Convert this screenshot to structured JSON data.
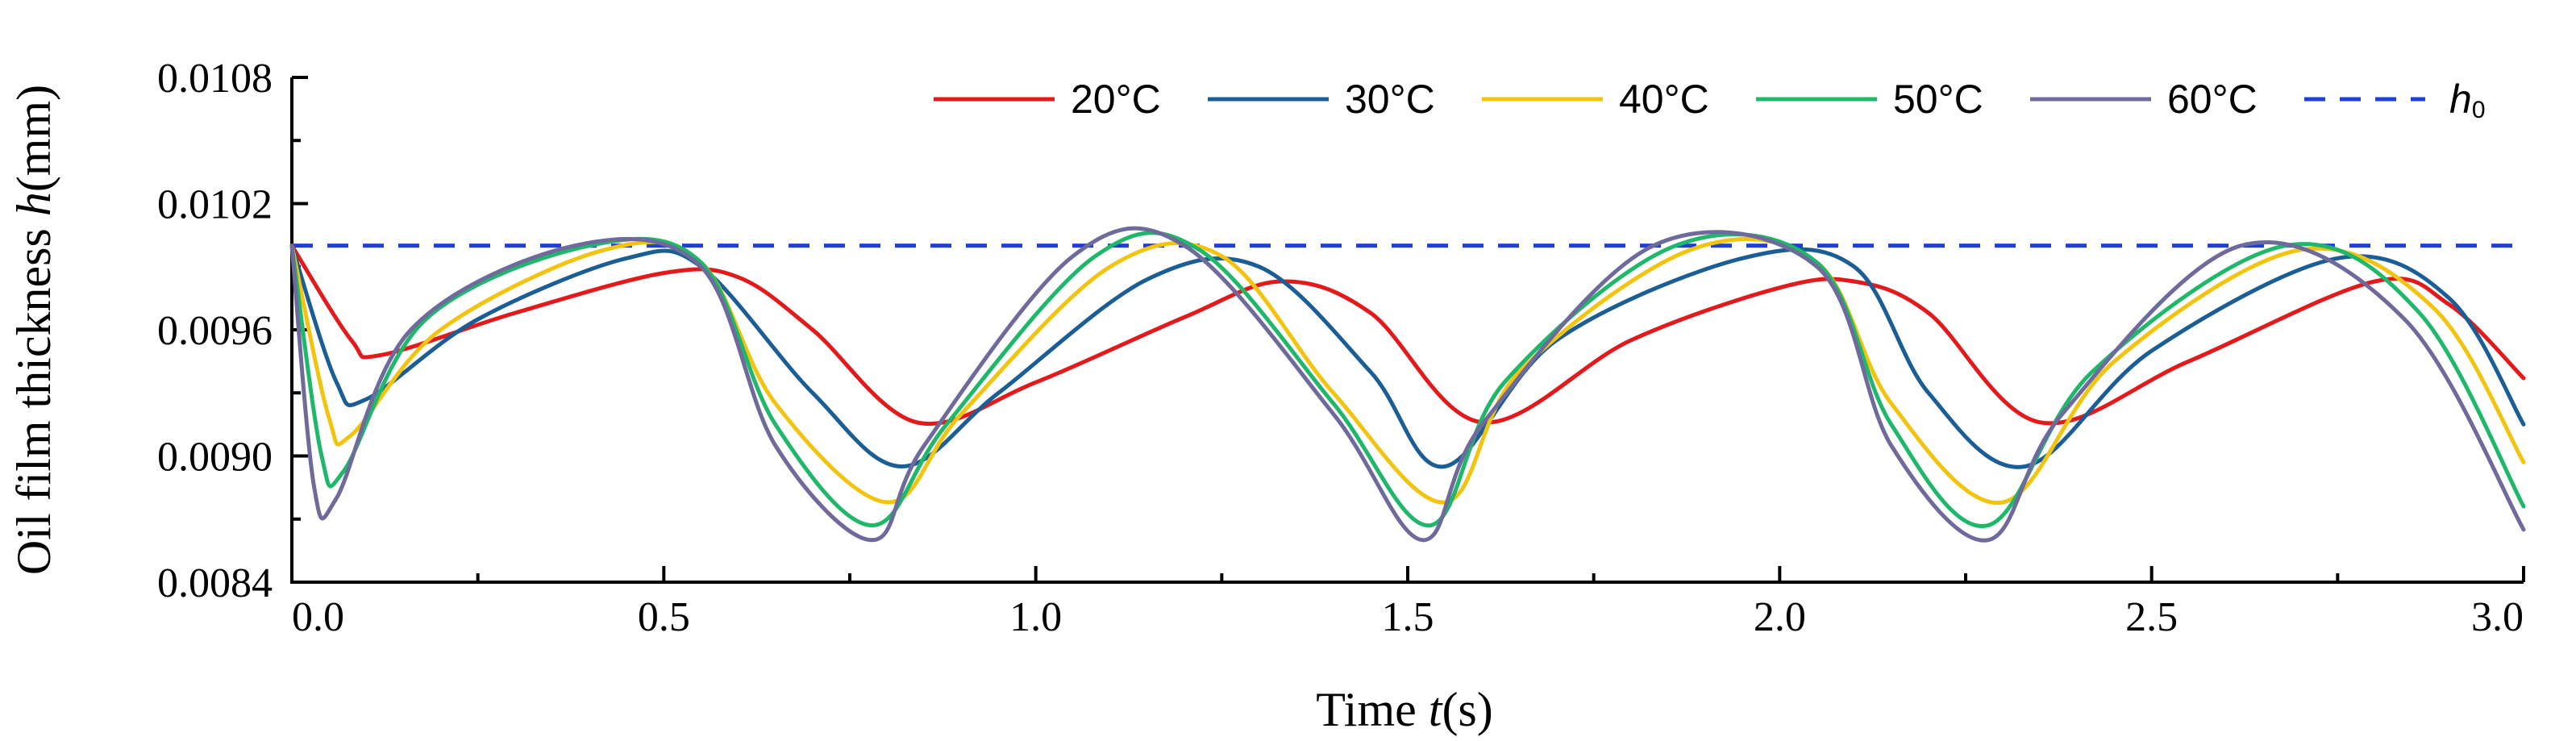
{
  "chart_data": {
    "type": "line",
    "xlabel": {
      "prefix": "Time ",
      "var": "t",
      "suffix": "(s)"
    },
    "ylabel": {
      "prefix": "Oil film thickness ",
      "var": "h",
      "suffix": "(mm)"
    },
    "xlim": [
      0,
      3.0
    ],
    "ylim": [
      0.0084,
      0.0108
    ],
    "xticks": [
      0,
      0.5,
      1.0,
      1.5,
      2.0,
      2.5,
      3.0
    ],
    "xtick_labels": [
      "0.0",
      "0.5",
      "1.0",
      "1.5",
      "2.0",
      "2.5",
      "3.0"
    ],
    "yticks": [
      0.0084,
      0.009,
      0.0096,
      0.0102,
      0.0108
    ],
    "ytick_labels": [
      "0.0084",
      "0.0090",
      "0.0096",
      "0.0102",
      "0.0108"
    ],
    "legend_position": "top-right",
    "reference": {
      "name": "h₀",
      "label_var": "h",
      "label_sub": "0",
      "value": 0.01,
      "color": "#1f3fd6",
      "style": "dashed"
    },
    "series": [
      {
        "name": "20°C",
        "color": "#e31a1c",
        "x": [
          0.0,
          0.08,
          0.12,
          0.3,
          0.5,
          0.6,
          0.7,
          0.84,
          1.0,
          1.2,
          1.33,
          1.45,
          1.6,
          1.8,
          2.0,
          2.1,
          2.2,
          2.35,
          2.55,
          2.8,
          2.9,
          3.0
        ],
        "y": [
          0.01,
          0.00955,
          0.00948,
          0.00968,
          0.00987,
          0.00985,
          0.0096,
          0.00916,
          0.00935,
          0.00966,
          0.00983,
          0.00968,
          0.00916,
          0.00955,
          0.0098,
          0.00983,
          0.00968,
          0.00916,
          0.00945,
          0.00983,
          0.00972,
          0.00937
        ]
      },
      {
        "name": "30°C",
        "color": "#1b5e96",
        "x": [
          0.0,
          0.06,
          0.1,
          0.25,
          0.45,
          0.55,
          0.7,
          0.82,
          0.95,
          1.15,
          1.3,
          1.45,
          1.55,
          1.7,
          1.95,
          2.1,
          2.2,
          2.33,
          2.5,
          2.75,
          2.9,
          3.0
        ],
        "y": [
          0.01,
          0.00935,
          0.00927,
          0.00965,
          0.00994,
          0.0099,
          0.0093,
          0.00895,
          0.0093,
          0.00984,
          0.0099,
          0.0094,
          0.00895,
          0.00955,
          0.00994,
          0.0099,
          0.0093,
          0.00895,
          0.0095,
          0.00994,
          0.00975,
          0.00915
        ]
      },
      {
        "name": "40°C",
        "color": "#f2c40f",
        "x": [
          0.0,
          0.05,
          0.08,
          0.2,
          0.42,
          0.55,
          0.65,
          0.8,
          0.9,
          1.1,
          1.25,
          1.4,
          1.55,
          1.65,
          1.88,
          2.05,
          2.15,
          2.3,
          2.45,
          2.7,
          2.88,
          3.0
        ],
        "y": [
          0.01,
          0.00918,
          0.0091,
          0.0096,
          0.00998,
          0.00992,
          0.00925,
          0.00878,
          0.0092,
          0.0099,
          0.00995,
          0.0093,
          0.00878,
          0.0094,
          0.00998,
          0.00992,
          0.00925,
          0.00878,
          0.00945,
          0.00998,
          0.0097,
          0.00897
        ]
      },
      {
        "name": "50°C",
        "color": "#1fb86a",
        "x": [
          0.0,
          0.04,
          0.07,
          0.18,
          0.4,
          0.55,
          0.65,
          0.78,
          0.88,
          1.08,
          1.22,
          1.4,
          1.53,
          1.63,
          1.86,
          2.05,
          2.15,
          2.28,
          2.42,
          2.68,
          2.86,
          3.0
        ],
        "y": [
          0.01,
          0.009,
          0.00893,
          0.00965,
          0.01,
          0.00992,
          0.00915,
          0.00867,
          0.00915,
          0.00995,
          0.00998,
          0.00925,
          0.00867,
          0.00935,
          0.01,
          0.00992,
          0.00915,
          0.00867,
          0.0094,
          0.01,
          0.00968,
          0.00876
        ]
      },
      {
        "name": "60°C",
        "color": "#6e6a9c",
        "x": [
          0.0,
          0.03,
          0.06,
          0.16,
          0.38,
          0.55,
          0.65,
          0.78,
          0.85,
          1.05,
          1.2,
          1.4,
          1.52,
          1.6,
          1.83,
          2.05,
          2.15,
          2.28,
          2.38,
          2.62,
          2.84,
          3.0
        ],
        "y": [
          0.01,
          0.00885,
          0.0088,
          0.0096,
          0.01,
          0.0099,
          0.00905,
          0.0086,
          0.00905,
          0.00995,
          0.01,
          0.0092,
          0.0086,
          0.00915,
          0.01,
          0.0099,
          0.00905,
          0.0086,
          0.0092,
          0.01,
          0.00965,
          0.00865
        ]
      }
    ]
  }
}
